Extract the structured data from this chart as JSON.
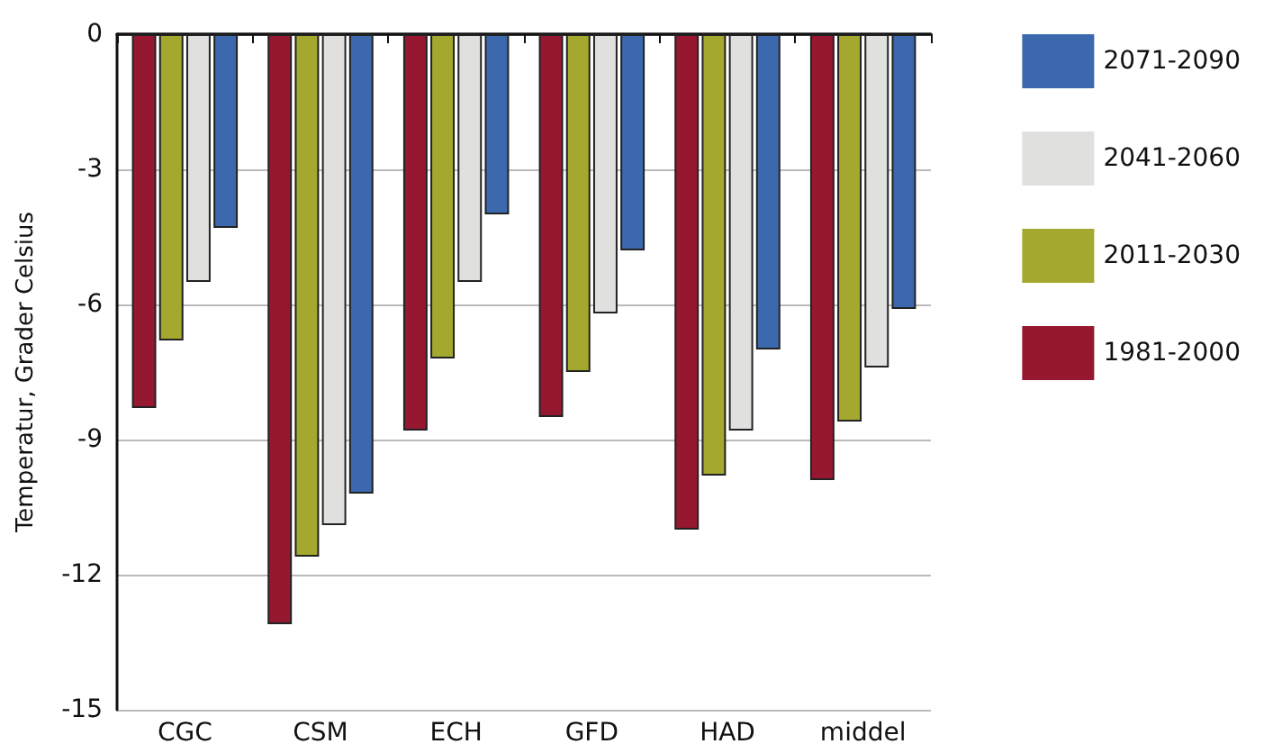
{
  "chart_data": {
    "type": "bar",
    "ylabel": "Temperatur, Grader Celsius",
    "categories": [
      "CGC",
      "CSM",
      "ECH",
      "GFD",
      "HAD",
      "middel"
    ],
    "series": [
      {
        "name": "1981-2000",
        "color": "#961830",
        "values": [
          -8.3,
          -13.1,
          -8.8,
          -8.5,
          -11.0,
          -9.9
        ]
      },
      {
        "name": "2011-2030",
        "color": "#a5a82f",
        "values": [
          -6.8,
          -11.6,
          -7.2,
          -7.5,
          -9.8,
          -8.6
        ]
      },
      {
        "name": "2041-2060",
        "color": "#e0e1df",
        "values": [
          -5.5,
          -10.9,
          -5.5,
          -6.2,
          -8.8,
          -7.4
        ]
      },
      {
        "name": "2071-2090",
        "color": "#3c68ae",
        "values": [
          -4.3,
          -10.2,
          -4.0,
          -4.8,
          -7.0,
          -6.1
        ]
      }
    ],
    "ylim": [
      -15,
      0
    ],
    "yticks": [
      0,
      -3,
      -6,
      -9,
      -12,
      -15
    ],
    "grid": "y",
    "legend": "right"
  }
}
